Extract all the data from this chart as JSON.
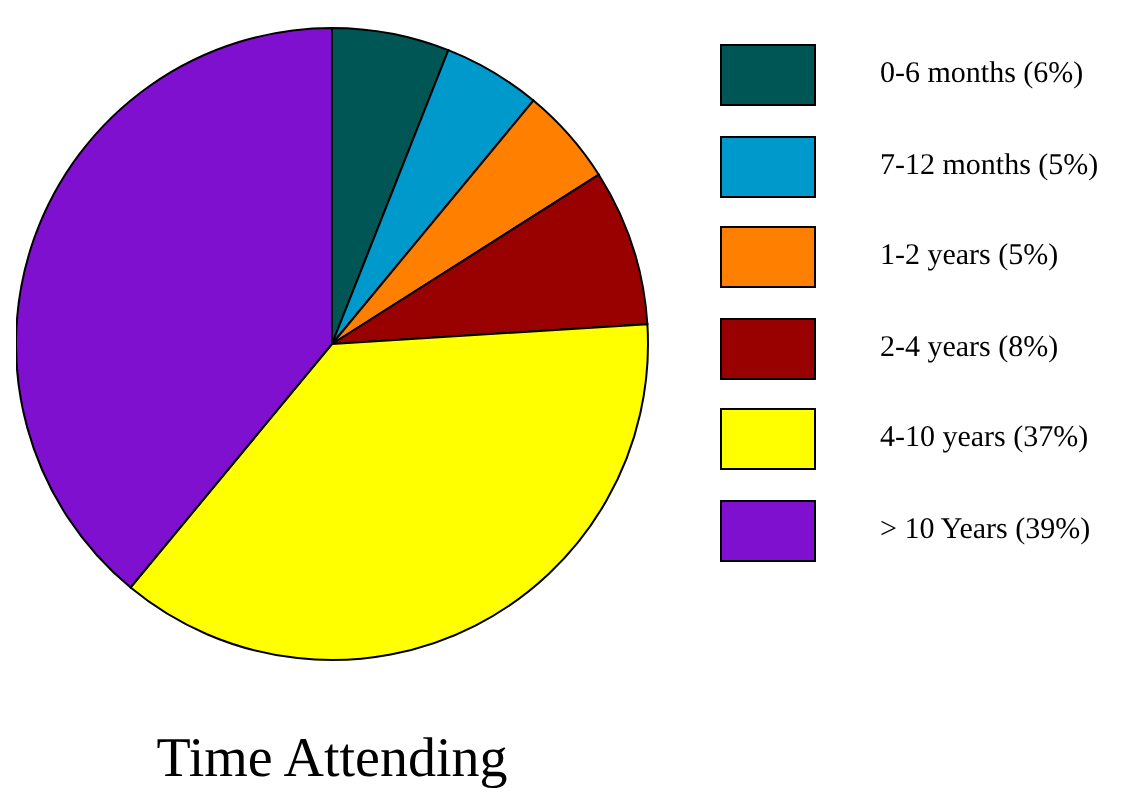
{
  "chart_data": {
    "type": "pie",
    "title": "Time Attending",
    "categories": [
      "0-6 months (6%)",
      "7-12 months (5%)",
      "1-2 years (5%)",
      "2-4 years (8%)",
      "4-10 years (37%)",
      "> 10 Years (39%)"
    ],
    "values": [
      6,
      5,
      5,
      8,
      37,
      39
    ],
    "colors": [
      "#005555",
      "#0099cc",
      "#ff8000",
      "#990000",
      "#ffff00",
      "#8010d0"
    ],
    "legend": "right"
  }
}
